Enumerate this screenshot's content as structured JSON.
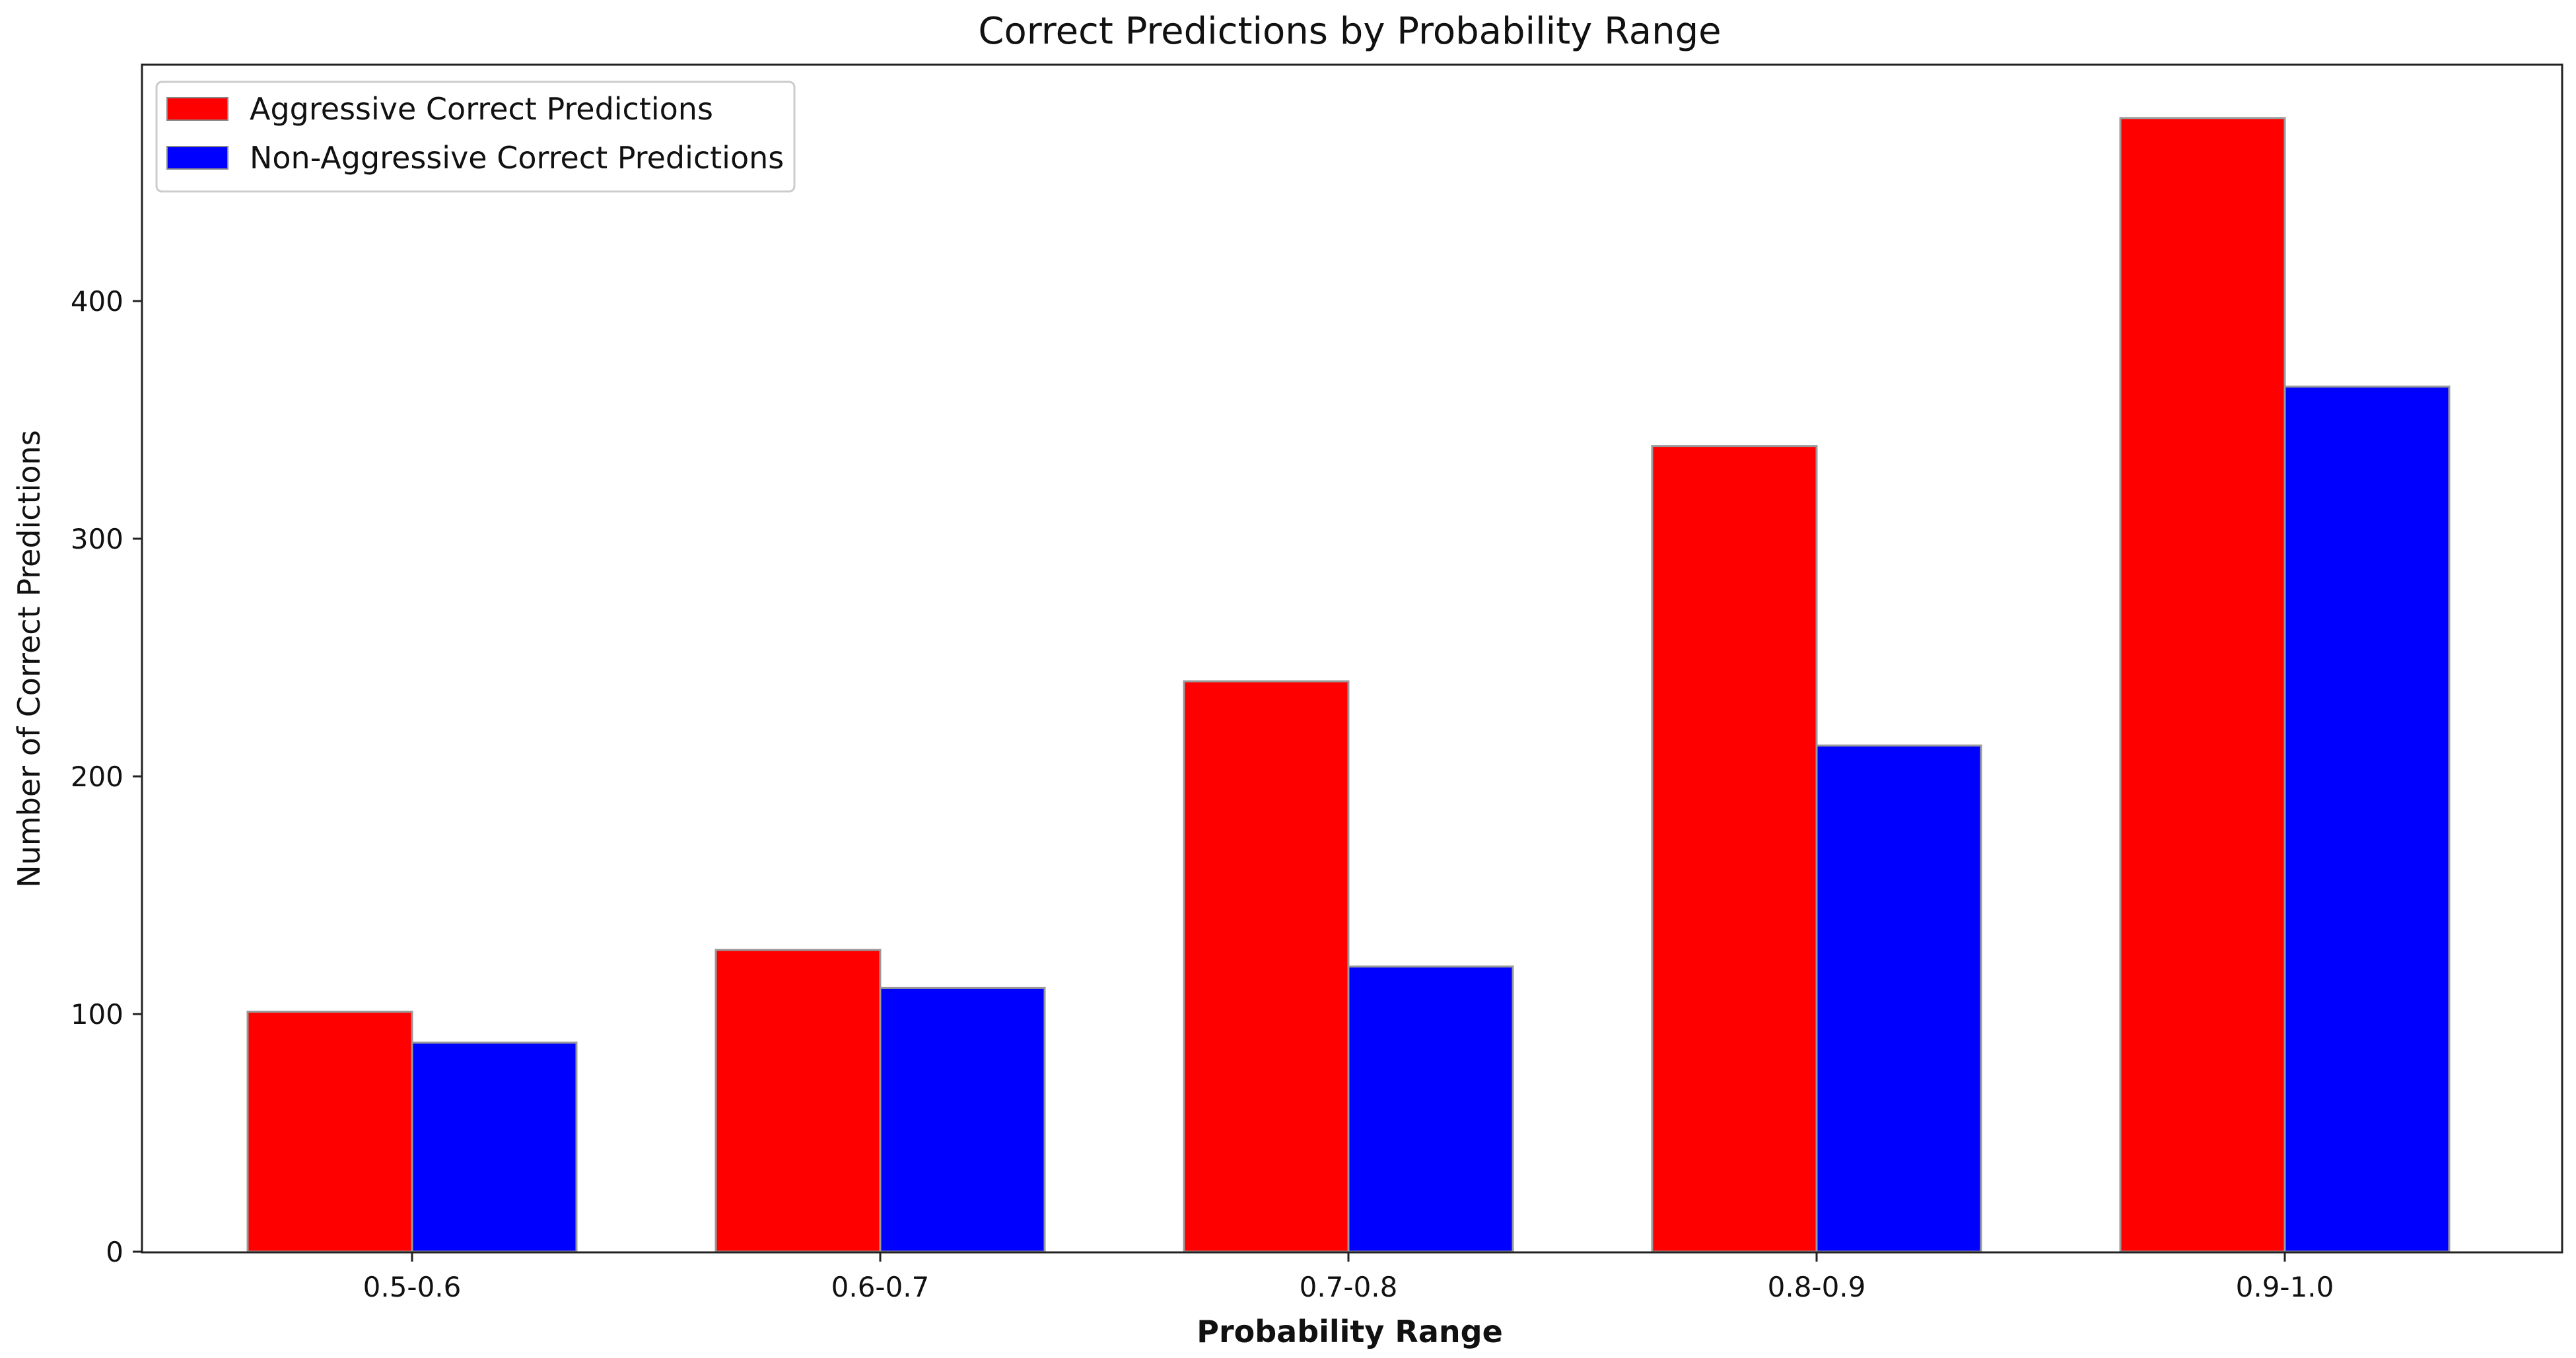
{
  "chart_data": {
    "type": "bar",
    "title": "Correct Predictions by Probability Range",
    "xlabel": "Probability Range",
    "ylabel": "Number of Correct Predictions",
    "categories": [
      "0.5-0.6",
      "0.6-0.7",
      "0.7-0.8",
      "0.8-0.9",
      "0.9-1.0"
    ],
    "series": [
      {
        "name": "Aggressive Correct Predictions",
        "color": "#ff0000",
        "values": [
          101,
          127,
          240,
          339,
          477
        ]
      },
      {
        "name": "Non-Aggressive Correct Predictions",
        "color": "#0000ff",
        "values": [
          88,
          111,
          120,
          213,
          364
        ]
      }
    ],
    "ylim": [
      0,
      500
    ],
    "yticks": [
      0,
      100,
      200,
      300,
      400
    ],
    "grid": false,
    "legend_position": "top-left"
  }
}
